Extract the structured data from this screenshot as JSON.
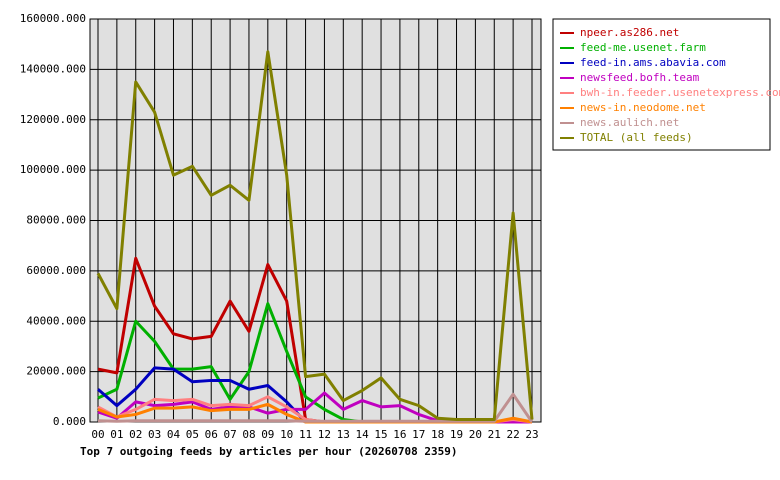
{
  "chart_data": {
    "type": "line",
    "title": "Top 7 outgoing feeds by articles per hour (20260708 2359)",
    "categories": [
      "00",
      "01",
      "02",
      "03",
      "04",
      "05",
      "06",
      "07",
      "08",
      "09",
      "10",
      "11",
      "12",
      "13",
      "14",
      "15",
      "16",
      "17",
      "18",
      "19",
      "20",
      "21",
      "22",
      "23"
    ],
    "ylim": [
      0,
      160000
    ],
    "yticks": [
      {
        "value": 0,
        "label": "0.000"
      },
      {
        "value": 20000,
        "label": "20000.000"
      },
      {
        "value": 40000,
        "label": "40000.000"
      },
      {
        "value": 60000,
        "label": "60000.000"
      },
      {
        "value": 80000,
        "label": "80000.000"
      },
      {
        "value": 100000,
        "label": "100000.000"
      },
      {
        "value": 120000,
        "label": "120000.000"
      },
      {
        "value": 140000,
        "label": "140000.000"
      },
      {
        "value": 160000,
        "label": "160000.000"
      }
    ],
    "grid": true,
    "series": [
      {
        "name": "npeer.as286.net",
        "color": "#c00000",
        "values": [
          21000,
          19500,
          65000,
          46000,
          35000,
          33000,
          34000,
          48000,
          36000,
          62500,
          48000,
          1000,
          0,
          0,
          0,
          0,
          0,
          0,
          0,
          0,
          0,
          0,
          0,
          0
        ]
      },
      {
        "name": "feed-me.usenet.farm",
        "color": "#00b000",
        "values": [
          9500,
          13000,
          40000,
          32000,
          21000,
          21000,
          22000,
          9000,
          20000,
          47000,
          28000,
          10000,
          5000,
          1000,
          0,
          0,
          0,
          0,
          0,
          0,
          0,
          0,
          0,
          0
        ]
      },
      {
        "name": "feed-in.ams.abavia.com",
        "color": "#0000c0",
        "values": [
          13000,
          6500,
          13000,
          21500,
          21000,
          16000,
          16500,
          16500,
          13000,
          14500,
          8000,
          0,
          0,
          0,
          0,
          0,
          0,
          0,
          0,
          0,
          0,
          0,
          0,
          0
        ]
      },
      {
        "name": "newsfeed.bofh.team",
        "color": "#c000c0",
        "values": [
          4000,
          1500,
          8000,
          6500,
          7000,
          8000,
          5000,
          6000,
          6000,
          3500,
          5000,
          5000,
          11500,
          5000,
          8500,
          6000,
          6500,
          3000,
          500,
          0,
          0,
          0,
          0,
          0
        ]
      },
      {
        "name": "bwh-in.feeder.usenetexpress.com",
        "color": "#ff8080",
        "values": [
          6000,
          2000,
          5000,
          9000,
          8500,
          9000,
          6500,
          7000,
          6500,
          10000,
          6000,
          1000,
          0,
          0,
          0,
          0,
          0,
          0,
          0,
          0,
          0,
          0,
          1000,
          0
        ]
      },
      {
        "name": "news-in.neodome.net",
        "color": "#ff8000",
        "values": [
          5000,
          2000,
          3000,
          5500,
          5500,
          6000,
          4500,
          5000,
          5000,
          7000,
          3000,
          0,
          0,
          0,
          0,
          0,
          0,
          0,
          0,
          0,
          0,
          0,
          1500,
          0
        ]
      },
      {
        "name": "news.aulich.net",
        "color": "#c09090",
        "values": [
          500,
          300,
          500,
          500,
          500,
          500,
          500,
          500,
          500,
          500,
          500,
          300,
          300,
          300,
          300,
          300,
          300,
          300,
          300,
          300,
          300,
          300,
          11000,
          0
        ]
      },
      {
        "name": "TOTAL (all feeds)",
        "color": "#808000",
        "values": [
          59000,
          45000,
          135000,
          123000,
          98000,
          101500,
          90000,
          94000,
          88000,
          147000,
          98000,
          18000,
          19000,
          8500,
          12500,
          17500,
          9000,
          6500,
          1500,
          1000,
          1000,
          1000,
          83000,
          1000
        ]
      }
    ]
  }
}
